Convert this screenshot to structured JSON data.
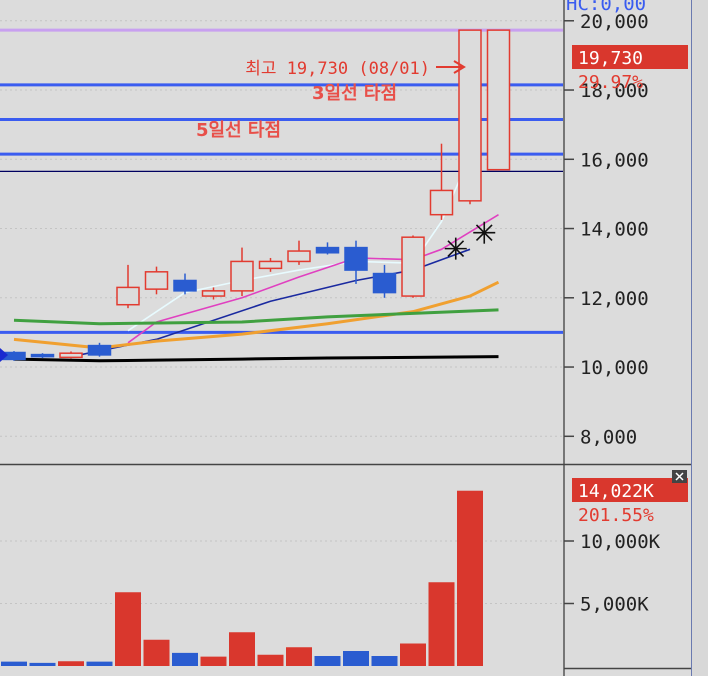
{
  "header": {
    "partial_label": "HC:0,00"
  },
  "chart_data": [
    {
      "type": "candlestick",
      "ylim": [
        7200,
        20600
      ],
      "yticks": [
        {
          "value": 20000,
          "label": "20,000"
        },
        {
          "value": 18000,
          "label": "18,000"
        },
        {
          "value": 16000,
          "label": "16,000"
        },
        {
          "value": 14000,
          "label": "14,000"
        },
        {
          "value": 12000,
          "label": "12,000"
        },
        {
          "value": 10000,
          "label": "10,000"
        },
        {
          "value": 8000,
          "label": "8,000"
        }
      ],
      "current_price": {
        "label": "19,730",
        "value": 19730
      },
      "change_label": "29.97%",
      "high_annotation": {
        "text": "최고 19,730 (08/01)",
        "value": 19730
      },
      "annotations": [
        {
          "text": "3일선 타점",
          "value": 18500
        },
        {
          "text": "5일선 타점",
          "value": 17400
        }
      ],
      "horizontal_lines": [
        {
          "value": 19730,
          "color": "#c8a0f0"
        },
        {
          "value": 18150,
          "color": "#3a5cf0"
        },
        {
          "value": 17150,
          "color": "#3a5cf0"
        },
        {
          "value": 16150,
          "color": "#3a5cf0"
        },
        {
          "value": 15650,
          "color": "#000060"
        },
        {
          "value": 11000,
          "color": "#3a5cf0"
        }
      ],
      "candles": [
        {
          "open": 10220,
          "close": 10420,
          "high": 10460,
          "low": 10180,
          "dir": "down"
        },
        {
          "open": 10360,
          "close": 10300,
          "high": 10400,
          "low": 10260,
          "dir": "down"
        },
        {
          "open": 10280,
          "close": 10400,
          "high": 10450,
          "low": 10250,
          "dir": "up"
        },
        {
          "open": 10350,
          "close": 10620,
          "high": 10700,
          "low": 10300,
          "dir": "down"
        },
        {
          "open": 11800,
          "close": 12300,
          "high": 12950,
          "low": 11700,
          "dir": "up"
        },
        {
          "open": 12250,
          "close": 12750,
          "high": 12900,
          "low": 12100,
          "dir": "up"
        },
        {
          "open": 12500,
          "close": 12200,
          "high": 12700,
          "low": 12100,
          "dir": "down"
        },
        {
          "open": 12050,
          "close": 12200,
          "high": 12300,
          "low": 11950,
          "dir": "up"
        },
        {
          "open": 12200,
          "close": 13050,
          "high": 13450,
          "low": 12050,
          "dir": "up"
        },
        {
          "open": 12850,
          "close": 13050,
          "high": 13150,
          "low": 12750,
          "dir": "up"
        },
        {
          "open": 13050,
          "close": 13350,
          "high": 13650,
          "low": 12950,
          "dir": "up"
        },
        {
          "open": 13450,
          "close": 13300,
          "high": 13600,
          "low": 13250,
          "dir": "down"
        },
        {
          "open": 13450,
          "close": 12800,
          "high": 13650,
          "low": 12400,
          "dir": "down"
        },
        {
          "open": 12700,
          "close": 12150,
          "high": 12950,
          "low": 12000,
          "dir": "down"
        },
        {
          "open": 12050,
          "close": 13750,
          "high": 13800,
          "low": 12000,
          "dir": "up"
        },
        {
          "open": 14400,
          "close": 15100,
          "high": 16450,
          "low": 14250,
          "dir": "up"
        },
        {
          "open": 14800,
          "close": 19730,
          "high": 19730,
          "low": 14700,
          "dir": "up"
        },
        {
          "open": 15700,
          "close": 19730,
          "high": 19730,
          "low": 15700,
          "dir": "up"
        }
      ],
      "moving_averages": [
        {
          "name": "MA3",
          "color": "#e8fbff",
          "points": [
            [
              4,
              11050
            ],
            [
              6,
              12150
            ],
            [
              8,
              12500
            ],
            [
              10,
              12800
            ],
            [
              12,
              13050
            ],
            [
              14,
              13000
            ],
            [
              15,
              14200
            ],
            [
              16,
              16100
            ]
          ]
        },
        {
          "name": "MA5",
          "color": "#e040c0",
          "points": [
            [
              4,
              10700
            ],
            [
              5,
              11300
            ],
            [
              8,
              12000
            ],
            [
              10,
              12600
            ],
            [
              12,
              13150
            ],
            [
              14,
              13100
            ],
            [
              15,
              13400
            ],
            [
              17,
              14400
            ]
          ]
        },
        {
          "name": "MA10",
          "color": "#1a2aa0",
          "points": [
            [
              2,
              10300
            ],
            [
              5,
              10800
            ],
            [
              9,
              11900
            ],
            [
              12,
              12500
            ],
            [
              14,
              12800
            ],
            [
              16,
              13400
            ]
          ]
        },
        {
          "name": "MA20",
          "color": "#f0a030",
          "points": [
            [
              0,
              10800
            ],
            [
              3,
              10550
            ],
            [
              5,
              10750
            ],
            [
              8,
              10950
            ],
            [
              11,
              11250
            ],
            [
              14,
              11600
            ],
            [
              16,
              12050
            ],
            [
              17,
              12450
            ]
          ]
        },
        {
          "name": "MA60",
          "color": "#40a040",
          "points": [
            [
              0,
              11350
            ],
            [
              3,
              11250
            ],
            [
              8,
              11300
            ],
            [
              11,
              11450
            ],
            [
              14,
              11550
            ],
            [
              17,
              11650
            ]
          ]
        },
        {
          "name": "MA120",
          "color": "#000000",
          "points": [
            [
              0,
              10230
            ],
            [
              3,
              10180
            ],
            [
              5,
              10200
            ],
            [
              8,
              10230
            ],
            [
              11,
              10260
            ],
            [
              14,
              10280
            ],
            [
              17,
              10300
            ]
          ]
        }
      ],
      "markers": [
        {
          "type": "asterisk",
          "index": 15.5,
          "value": 13420
        },
        {
          "type": "asterisk",
          "index": 16.5,
          "value": 13880
        }
      ]
    },
    {
      "type": "bar",
      "ylim": [
        0,
        16000
      ],
      "yticks": [
        {
          "value": 10000,
          "label": "10,000K"
        },
        {
          "value": 5000,
          "label": "5,000K"
        }
      ],
      "current_value_label": "14,022K",
      "change_label": "201.55%",
      "values": [
        350,
        250,
        380,
        350,
        5900,
        2100,
        1050,
        750,
        2700,
        900,
        1500,
        800,
        1200,
        800,
        1800,
        6700,
        14022,
        0
      ],
      "colors": [
        "blue",
        "blue",
        "red",
        "blue",
        "red",
        "red",
        "blue",
        "red",
        "red",
        "red",
        "red",
        "blue",
        "blue",
        "blue",
        "red",
        "red",
        "red",
        "red"
      ]
    }
  ]
}
